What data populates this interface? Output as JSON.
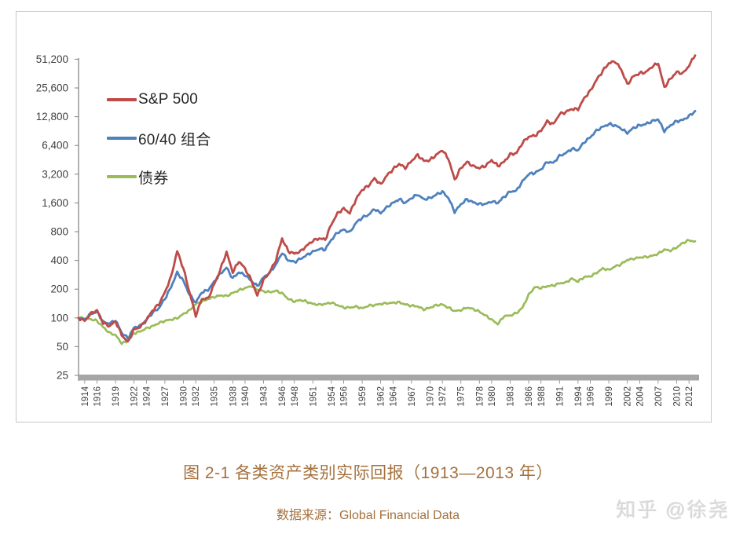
{
  "figure": {
    "caption": "图 2-1 各类资产类别实际回报（1913—2013 年）",
    "source_label": "数据来源：Global Financial Data",
    "watermark": "知乎 @徐尧",
    "caption_color": "#a5713d"
  },
  "chart_data": {
    "type": "line",
    "title": "",
    "xlabel": "",
    "ylabel": "",
    "grid": false,
    "legend_position": "inside-top-left",
    "y_scale": "log2",
    "ylim": [
      25,
      51200
    ],
    "y_ticks": [
      25,
      50,
      100,
      200,
      400,
      800,
      1600,
      3200,
      6400,
      12800,
      25600,
      51200
    ],
    "y_tick_labels": [
      "25",
      "50",
      "100",
      "200",
      "400",
      "800",
      "1,600",
      "3,200",
      "6,400",
      "12,800",
      "25,600",
      "51,200"
    ],
    "x_range": [
      1913,
      2013
    ],
    "x_tick_years": [
      1914,
      1916,
      1919,
      1922,
      1924,
      1927,
      1930,
      1932,
      1935,
      1938,
      1940,
      1943,
      1946,
      1948,
      1951,
      1954,
      1956,
      1959,
      1962,
      1964,
      1967,
      1970,
      1972,
      1975,
      1978,
      1980,
      1983,
      1986,
      1988,
      1991,
      1994,
      1996,
      1999,
      2002,
      2004,
      2007,
      2010,
      2012
    ],
    "axis_color": "#808080",
    "baseline_bar_color": "#a6a6a6",
    "years_start": 1913,
    "series": [
      {
        "name": "S&P 500",
        "color": "#be4b48",
        "values": [
          100,
          93,
          112,
          120,
          88,
          82,
          92,
          66,
          56,
          76,
          80,
          95,
          120,
          138,
          185,
          270,
          500,
          330,
          185,
          105,
          158,
          160,
          225,
          320,
          490,
          300,
          390,
          330,
          250,
          170,
          250,
          300,
          400,
          680,
          500,
          470,
          500,
          570,
          640,
          680,
          660,
          950,
          1250,
          1400,
          1250,
          1750,
          2200,
          2400,
          2900,
          2500,
          3100,
          3600,
          4100,
          3700,
          4400,
          5100,
          4400,
          4500,
          5100,
          5700,
          4600,
          2800,
          3700,
          4300,
          3900,
          3700,
          3900,
          4500,
          3900,
          4300,
          5200,
          5300,
          6800,
          7900,
          8100,
          9100,
          11500,
          10700,
          13600,
          14300,
          15400,
          15200,
          20000,
          24000,
          31000,
          38500,
          46500,
          48500,
          40000,
          28000,
          34000,
          36500,
          37500,
          42500,
          46500,
          26000,
          32000,
          37500,
          36500,
          43500,
          57000
        ]
      },
      {
        "name": "60/40 组合",
        "color": "#4f81bd",
        "values": [
          100,
          96,
          110,
          116,
          91,
          87,
          94,
          70,
          61,
          79,
          83,
          95,
          113,
          126,
          158,
          210,
          300,
          245,
          175,
          145,
          185,
          195,
          240,
          290,
          335,
          260,
          300,
          280,
          245,
          215,
          265,
          300,
          360,
          480,
          400,
          385,
          415,
          455,
          495,
          525,
          520,
          660,
          780,
          840,
          790,
          990,
          1120,
          1200,
          1380,
          1250,
          1450,
          1600,
          1750,
          1600,
          1800,
          1950,
          1750,
          1800,
          1950,
          2100,
          1800,
          1280,
          1550,
          1750,
          1620,
          1560,
          1560,
          1650,
          1600,
          1850,
          2100,
          2150,
          2700,
          3200,
          3300,
          3600,
          4300,
          4200,
          5000,
          5300,
          5900,
          5700,
          6900,
          7800,
          9200,
          10000,
          10700,
          10400,
          9600,
          8600,
          9800,
          10400,
          10700,
          11500,
          12000,
          9000,
          10400,
          11500,
          11800,
          13000,
          14600
        ]
      },
      {
        "name": "债券",
        "color": "#9bbb59",
        "values": [
          100,
          99,
          97,
          93,
          80,
          70,
          66,
          54,
          57,
          69,
          72,
          78,
          82,
          88,
          93,
          96,
          99,
          110,
          120,
          140,
          148,
          158,
          165,
          172,
          170,
          182,
          195,
          205,
          215,
          198,
          190,
          186,
          192,
          182,
          158,
          148,
          154,
          148,
          140,
          138,
          140,
          144,
          136,
          128,
          128,
          132,
          126,
          134,
          136,
          140,
          142,
          144,
          146,
          138,
          134,
          132,
          122,
          128,
          136,
          138,
          128,
          118,
          120,
          128,
          124,
          116,
          106,
          96,
          86,
          104,
          106,
          112,
          128,
          175,
          210,
          205,
          215,
          218,
          230,
          235,
          258,
          240,
          268,
          272,
          295,
          330,
          318,
          345,
          365,
          405,
          415,
          430,
          435,
          445,
          470,
          520,
          505,
          545,
          610,
          650,
          630
        ]
      }
    ]
  }
}
